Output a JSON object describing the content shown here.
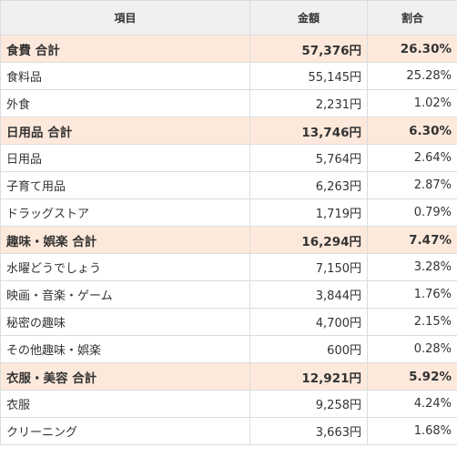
{
  "header": {
    "item": "項目",
    "amount": "金額",
    "ratio": "割合"
  },
  "colors": {
    "subtotal_bg": "#fde9db",
    "header_bg": "#f0f0f0",
    "border": "#dcdcdc"
  },
  "rows": [
    {
      "type": "subtotal",
      "name": "食費 合計",
      "amount": "57,376円",
      "ratio": "26.30%"
    },
    {
      "type": "item",
      "name": "食料品",
      "amount": "55,145円",
      "ratio": "25.28%"
    },
    {
      "type": "item",
      "name": "外食",
      "amount": "2,231円",
      "ratio": "1.02%"
    },
    {
      "type": "subtotal",
      "name": "日用品 合計",
      "amount": "13,746円",
      "ratio": "6.30%"
    },
    {
      "type": "item",
      "name": "日用品",
      "amount": "5,764円",
      "ratio": "2.64%"
    },
    {
      "type": "item",
      "name": "子育て用品",
      "amount": "6,263円",
      "ratio": "2.87%"
    },
    {
      "type": "item",
      "name": "ドラッグストア",
      "amount": "1,719円",
      "ratio": "0.79%"
    },
    {
      "type": "subtotal",
      "name": "趣味・娯楽 合計",
      "amount": "16,294円",
      "ratio": "7.47%"
    },
    {
      "type": "item",
      "name": "水曜どうでしょう",
      "amount": "7,150円",
      "ratio": "3.28%"
    },
    {
      "type": "item",
      "name": "映画・音楽・ゲーム",
      "amount": "3,844円",
      "ratio": "1.76%"
    },
    {
      "type": "item",
      "name": "秘密の趣味",
      "amount": "4,700円",
      "ratio": "2.15%"
    },
    {
      "type": "item",
      "name": "その他趣味・娯楽",
      "amount": "600円",
      "ratio": "0.28%"
    },
    {
      "type": "subtotal",
      "name": "衣服・美容 合計",
      "amount": "12,921円",
      "ratio": "5.92%"
    },
    {
      "type": "item",
      "name": "衣服",
      "amount": "9,258円",
      "ratio": "4.24%"
    },
    {
      "type": "item",
      "name": "クリーニング",
      "amount": "3,663円",
      "ratio": "1.68%"
    }
  ]
}
